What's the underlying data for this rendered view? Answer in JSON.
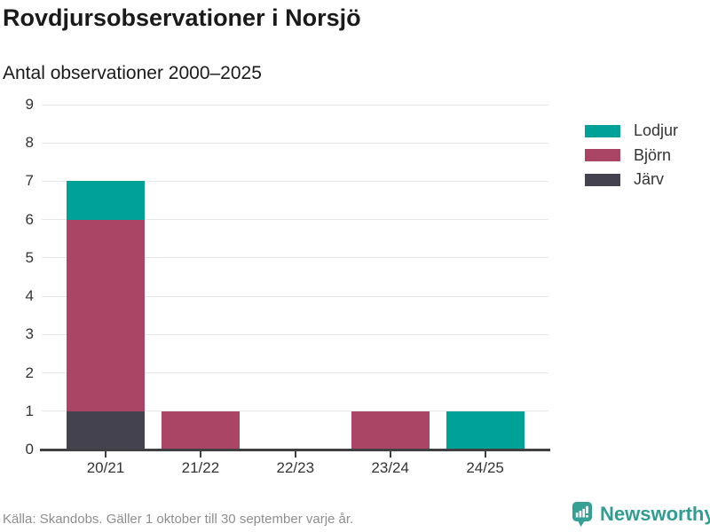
{
  "header": {
    "title": "Rovdjursobservationer i Norsjö",
    "subtitle": "Antal observationer 2000–2025"
  },
  "chart_data": {
    "type": "bar",
    "stacked": true,
    "title": "Rovdjursobservationer i Norsjö",
    "subtitle": "Antal observationer 2000–2025",
    "xlabel": "",
    "ylabel": "",
    "categories": [
      "20/21",
      "21/22",
      "22/23",
      "23/24",
      "24/25"
    ],
    "series": [
      {
        "name": "Järv",
        "color": "#44424F",
        "values": [
          1,
          0,
          0,
          0,
          0
        ]
      },
      {
        "name": "Björn",
        "color": "#AA4566",
        "values": [
          5,
          1,
          0,
          1,
          0
        ]
      },
      {
        "name": "Lodjur",
        "color": "#00A298",
        "values": [
          1,
          0,
          0,
          0,
          1
        ]
      }
    ],
    "totals": [
      7,
      1,
      0,
      1,
      1
    ],
    "ylim": [
      0,
      9
    ],
    "yticks": [
      0,
      1,
      2,
      3,
      4,
      5,
      6,
      7,
      8,
      9
    ],
    "grid": true,
    "legend": {
      "position": "right",
      "order": [
        "Lodjur",
        "Björn",
        "Järv"
      ]
    }
  },
  "footer": {
    "source": "Källa: Skandobs. Gäller 1 oktober till 30 september varje år.",
    "brand": "Newsworthy"
  },
  "colors": {
    "axis": "#404043",
    "grid": "#e6e6e6",
    "brand_teal": "#2f9d92",
    "text": "#333333",
    "muted_text": "#8e8e8e"
  }
}
